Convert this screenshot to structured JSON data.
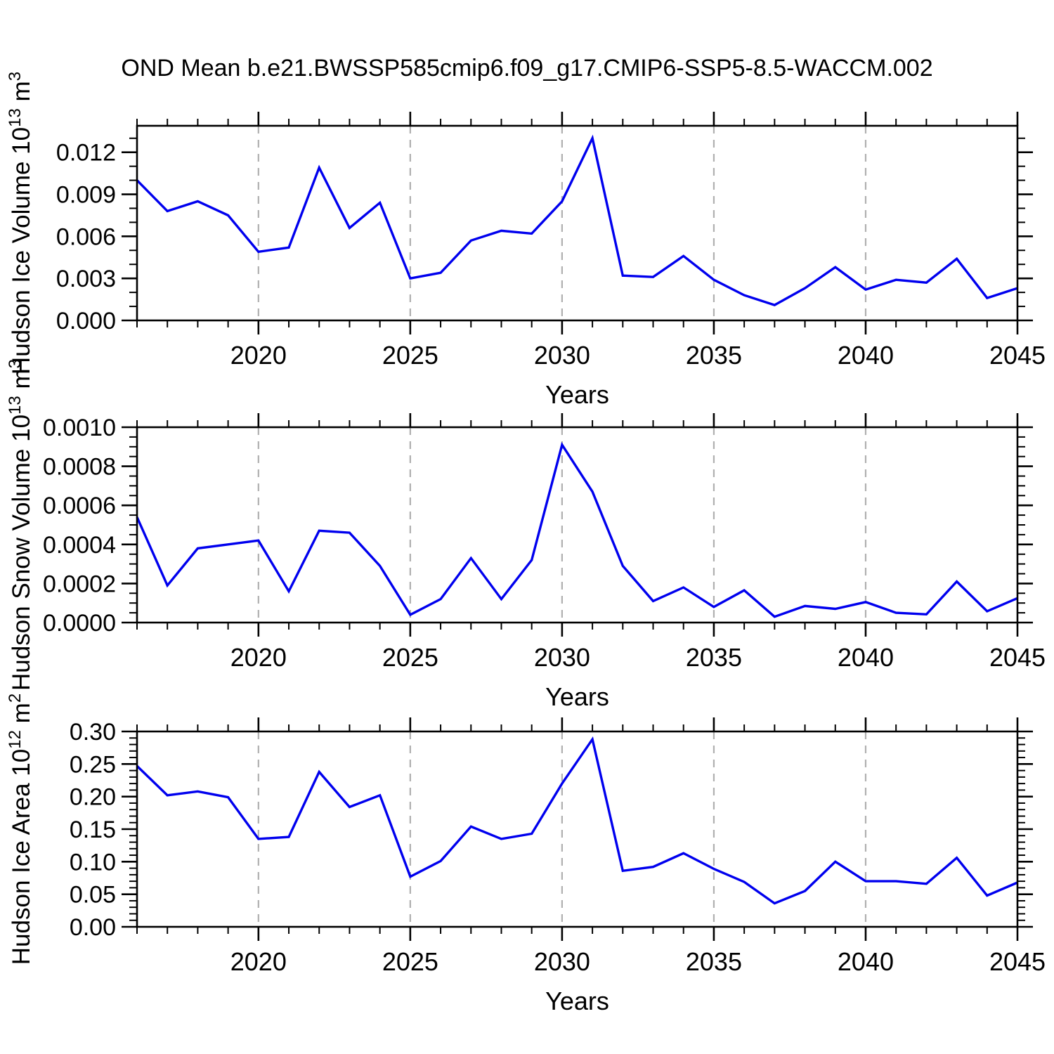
{
  "title": "OND Mean b.e21.BWSSP585cmip6.f09_g17.CMIP6-SSP5-8.5-WACCM.002",
  "xlabel": "Years",
  "colors": {
    "line": "#0000ee",
    "grid": "#b0b0b0",
    "axis": "#000000",
    "background": "#ffffff"
  },
  "x_axis": {
    "min": 2016,
    "max": 2045,
    "major_ticks": [
      {
        "label": "2020",
        "value": 2020
      },
      {
        "label": "2025",
        "value": 2025
      },
      {
        "label": "2030",
        "value": 2030
      },
      {
        "label": "2035",
        "value": 2035
      },
      {
        "label": "2040",
        "value": 2040
      },
      {
        "label": "2045",
        "value": 2045
      }
    ],
    "minor_step": 1,
    "grid_years": [
      2020,
      2025,
      2030,
      2035,
      2040
    ]
  },
  "years": [
    2016,
    2017,
    2018,
    2019,
    2020,
    2021,
    2022,
    2023,
    2024,
    2025,
    2026,
    2027,
    2028,
    2029,
    2030,
    2031,
    2032,
    2033,
    2034,
    2035,
    2036,
    2037,
    2038,
    2039,
    2040,
    2041,
    2042,
    2043,
    2044,
    2045
  ],
  "chart_data": [
    {
      "id": "ice-volume",
      "type": "line",
      "ylabel_parts": [
        {
          "t": "Hudson Ice Volume 10"
        },
        {
          "t": "13",
          "sup": true
        },
        {
          "t": " m"
        },
        {
          "t": "3",
          "sup": true
        }
      ],
      "ymin": 0,
      "ymax": 0.01389,
      "y_major_ticks": [
        {
          "label": "0.000",
          "value": 0
        },
        {
          "label": "0.003",
          "value": 0.003
        },
        {
          "label": "0.006",
          "value": 0.006
        },
        {
          "label": "0.009",
          "value": 0.009
        },
        {
          "label": "0.012",
          "value": 0.012
        }
      ],
      "y_minor_step": 0.001,
      "values": [
        0.01,
        0.0078,
        0.0085,
        0.0075,
        0.0049,
        0.0052,
        0.0109,
        0.0066,
        0.0084,
        0.003,
        0.0034,
        0.0057,
        0.0064,
        0.0062,
        0.0085,
        0.013,
        0.0032,
        0.0031,
        0.0046,
        0.0029,
        0.0018,
        0.0011,
        0.0023,
        0.0038,
        0.0022,
        0.0029,
        0.0027,
        0.0044,
        0.0016,
        0.0023
      ]
    },
    {
      "id": "snow-volume",
      "type": "line",
      "ylabel_parts": [
        {
          "t": "Hudson Snow Volume 10"
        },
        {
          "t": "13",
          "sup": true
        },
        {
          "t": " m"
        },
        {
          "t": "3",
          "sup": true
        }
      ],
      "ymin": 0,
      "ymax": 0.001,
      "y_major_ticks": [
        {
          "label": "0.0000",
          "value": 0
        },
        {
          "label": "0.0002",
          "value": 0.0002
        },
        {
          "label": "0.0004",
          "value": 0.0004
        },
        {
          "label": "0.0006",
          "value": 0.0006
        },
        {
          "label": "0.0008",
          "value": 0.0008
        },
        {
          "label": "0.0010",
          "value": 0.001
        }
      ],
      "y_minor_step": 5e-05,
      "values": [
        0.00054,
        0.00019,
        0.00038,
        0.0004,
        0.00042,
        0.00016,
        0.00047,
        0.00046,
        0.00029,
        4e-05,
        0.00012,
        0.00033,
        0.00012,
        0.00032,
        0.00091,
        0.00067,
        0.00029,
        0.00011,
        0.00018,
        8e-05,
        0.000165,
        3e-05,
        8.5e-05,
        7e-05,
        0.000105,
        5e-05,
        4.2e-05,
        0.00021,
        5.8e-05,
        0.000125
      ]
    },
    {
      "id": "ice-area",
      "type": "line",
      "ylabel_parts": [
        {
          "t": "Hudson Ice Area 10"
        },
        {
          "t": "12",
          "sup": true
        },
        {
          "t": " m"
        },
        {
          "t": "2",
          "sup": true
        }
      ],
      "ymin": 0,
      "ymax": 0.3,
      "y_major_ticks": [
        {
          "label": "0.00",
          "value": 0
        },
        {
          "label": "0.05",
          "value": 0.05
        },
        {
          "label": "0.10",
          "value": 0.1
        },
        {
          "label": "0.15",
          "value": 0.15
        },
        {
          "label": "0.20",
          "value": 0.2
        },
        {
          "label": "0.25",
          "value": 0.25
        },
        {
          "label": "0.30",
          "value": 0.3
        }
      ],
      "y_minor_step": 0.01,
      "values": [
        0.247,
        0.202,
        0.208,
        0.199,
        0.135,
        0.138,
        0.238,
        0.184,
        0.202,
        0.077,
        0.101,
        0.154,
        0.135,
        0.143,
        0.22,
        0.288,
        0.086,
        0.092,
        0.113,
        0.089,
        0.069,
        0.036,
        0.055,
        0.1,
        0.07,
        0.07,
        0.066,
        0.106,
        0.048,
        0.068
      ]
    }
  ]
}
